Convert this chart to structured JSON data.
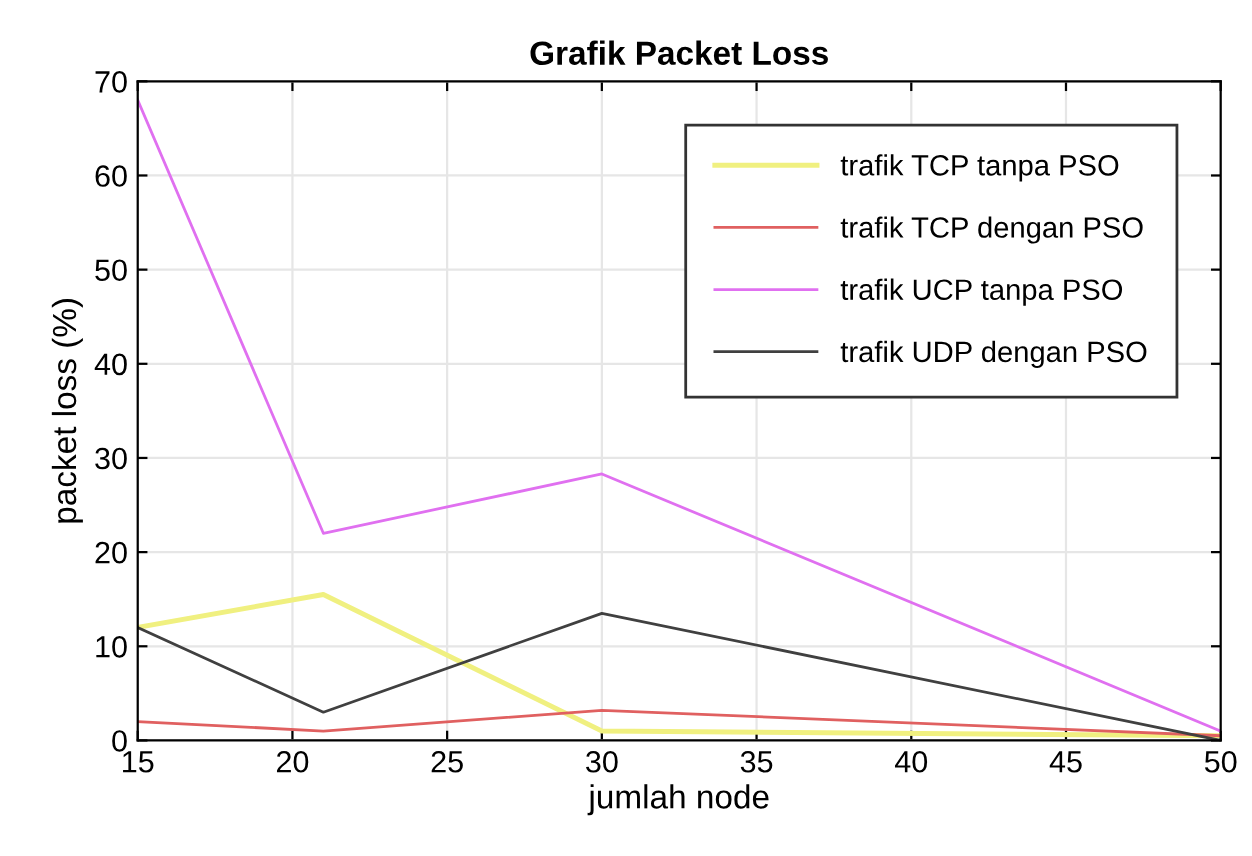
{
  "chart_data": {
    "type": "line",
    "title": "Grafik Packet Loss",
    "xlabel": "jumlah node",
    "ylabel": "packet loss (%)",
    "x": [
      15,
      21,
      30,
      50
    ],
    "series": [
      {
        "name": "trafik TCP tanpa PSO",
        "color": "#f0f080",
        "values": [
          12,
          15.5,
          1,
          0.5
        ]
      },
      {
        "name": "trafik TCP dengan PSO",
        "color": "#e06060",
        "values": [
          2,
          1,
          3.2,
          0.5
        ]
      },
      {
        "name": "trafik UCP tanpa PSO",
        "color": "#e070f0",
        "values": [
          68,
          22,
          28.3,
          1
        ]
      },
      {
        "name": "trafik UDP dengan PSO",
        "color": "#404040",
        "values": [
          12,
          3,
          13.5,
          0
        ]
      }
    ],
    "xlim": [
      15,
      50
    ],
    "xticks": [
      15,
      20,
      25,
      30,
      35,
      40,
      45,
      50
    ],
    "ylim": [
      0,
      70
    ],
    "yticks": [
      0,
      10,
      20,
      30,
      40,
      50,
      60,
      70
    ],
    "grid": true,
    "legend": "top right",
    "marker": "none",
    "line_style": "solid"
  }
}
